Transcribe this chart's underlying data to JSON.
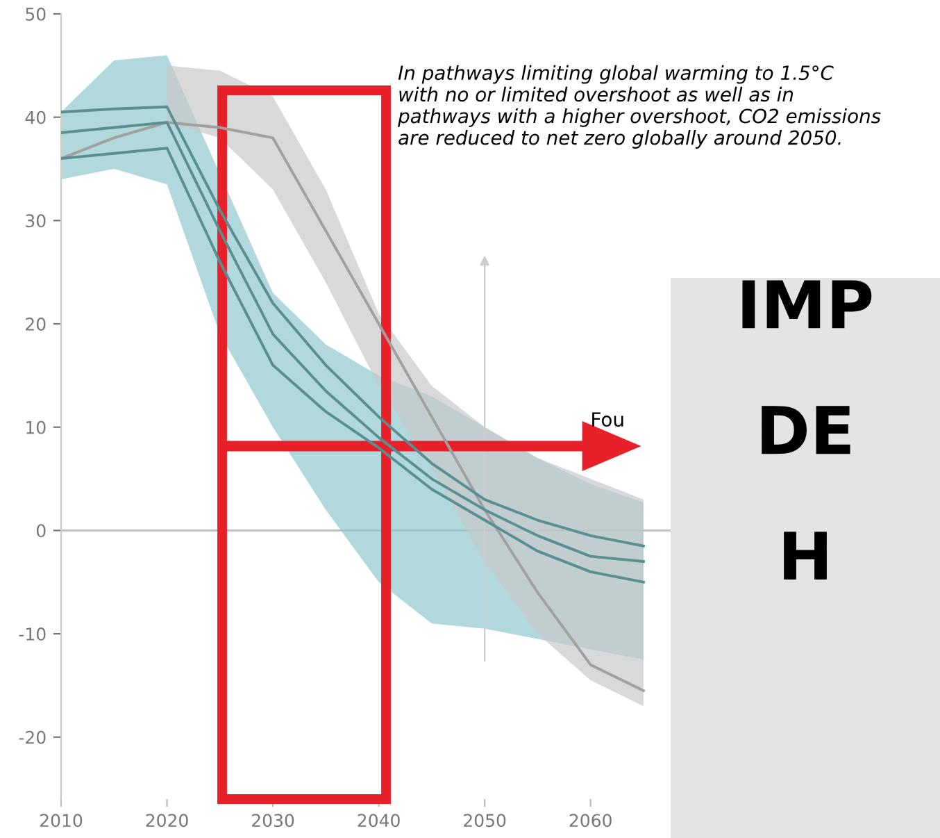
{
  "chart_data": {
    "type": "line",
    "annotations": [
      "In pathways limiting global warming to 1.5°C\nwith no or limited overshoot as well as in\npathways with a higher overshoot, CO2 emissions\nare reduced to net zero globally around 2050.",
      "Fou",
      "IMP",
      "DE",
      "H"
    ],
    "x": [
      2010,
      2015,
      2020,
      2025,
      2030,
      2035,
      2040,
      2045,
      2050,
      2055,
      2060,
      2065
    ],
    "series": [
      {
        "color": "#8fc8ce",
        "values": [
          null,
          null,
          null,
          null,
          null,
          null,
          null,
          null,
          null,
          null,
          null,
          null
        ],
        "lower": [
          34,
          35,
          33.5,
          19,
          10,
          2,
          -5,
          -9,
          -9.5,
          -10.5,
          -11.5,
          -12.5
        ],
        "upper": [
          40.5,
          45.5,
          46,
          34.5,
          23,
          18,
          15,
          13,
          10,
          7,
          4.5,
          2.7
        ]
      },
      {
        "color": "#c9c9c9",
        "values": [
          null,
          null,
          null,
          null,
          null,
          null,
          null,
          null,
          null,
          null,
          null,
          null
        ],
        "lower": [
          null,
          null,
          39.5,
          38,
          33,
          24,
          14,
          6,
          -3,
          -10,
          -14.5,
          -17
        ],
        "upper": [
          null,
          null,
          45,
          44.5,
          42,
          33,
          21,
          14,
          10,
          7,
          5,
          3
        ]
      },
      {
        "color": "#a0a0a0",
        "values": [
          36,
          38,
          39.5,
          39,
          38,
          29,
          20,
          11,
          2,
          -6,
          -13,
          -15.5
        ]
      },
      {
        "color": "#5a8f91",
        "values": [
          40.5,
          40.8,
          41,
          31,
          22,
          16,
          11,
          6.5,
          3,
          1,
          -0.5,
          -1.5
        ]
      },
      {
        "color": "#5a8f91",
        "values": [
          38.5,
          39,
          39.5,
          29,
          19,
          13.5,
          9,
          5,
          2,
          -0.5,
          -2.5,
          -3
        ]
      },
      {
        "color": "#5a8f91",
        "values": [
          36,
          36.5,
          37,
          26,
          16,
          11.5,
          8,
          4,
          1,
          -2,
          -4,
          -5
        ]
      }
    ],
    "ref_lines": [
      {
        "axis": "y",
        "value": 0,
        "color": "#bdbdbd"
      }
    ],
    "xlim": [
      2010,
      2093
    ],
    "ylim": [
      -26,
      50
    ],
    "xticks": [
      2010,
      2020,
      2030,
      2040,
      2050,
      2060
    ],
    "yticks": [
      -20,
      -10,
      0,
      10,
      20,
      30,
      40,
      50
    ],
    "grid": false,
    "legend": false,
    "marker": "none",
    "line_style": "solid"
  }
}
